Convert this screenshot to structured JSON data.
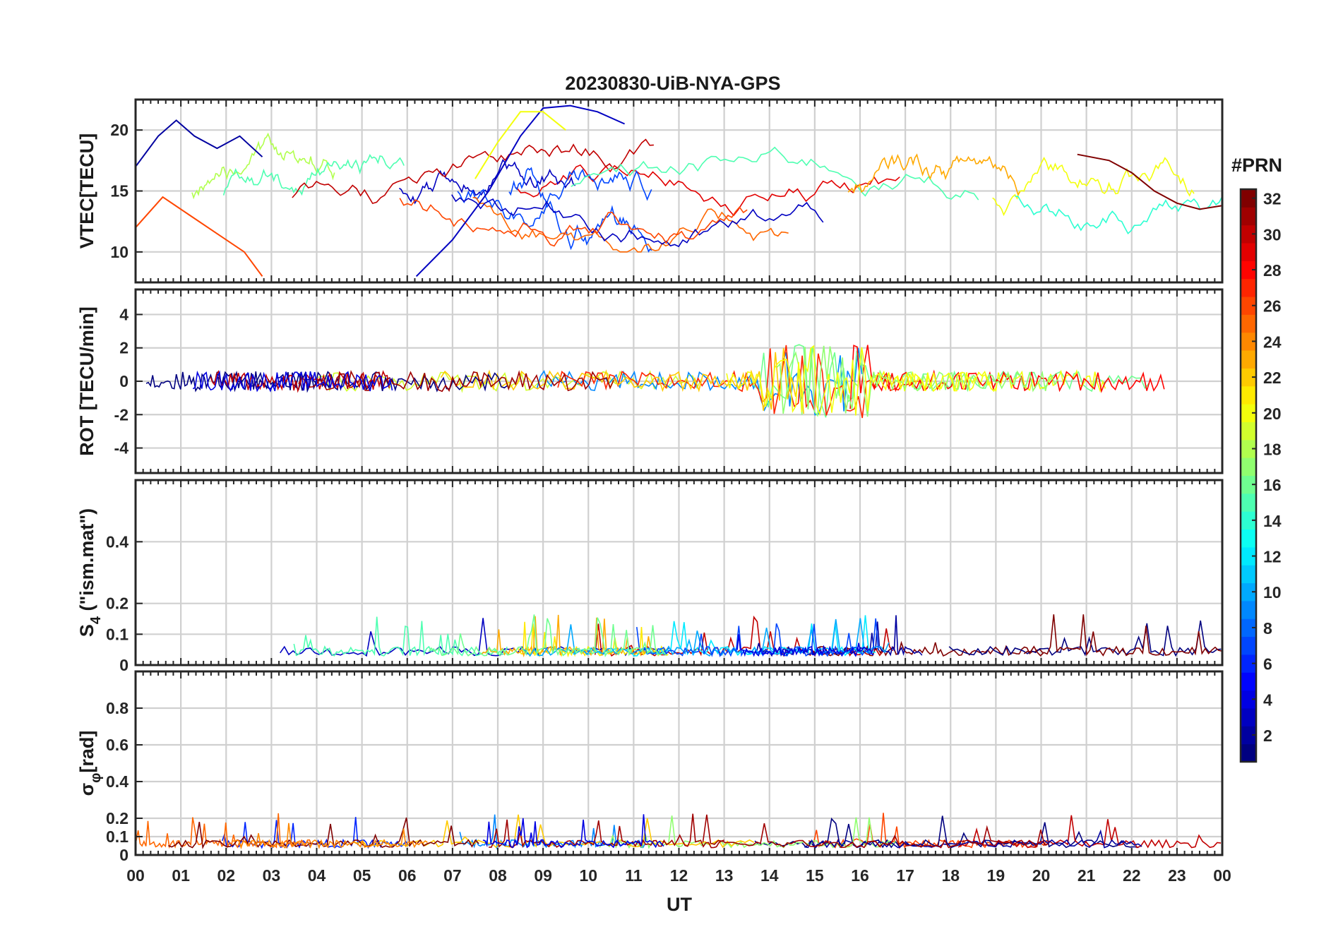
{
  "chart_data": {
    "type": "line",
    "title": "20230830-UiB-NYA-GPS",
    "x_axis": {
      "label": "UT",
      "tick_labels": [
        "00",
        "01",
        "02",
        "03",
        "04",
        "05",
        "06",
        "07",
        "08",
        "09",
        "10",
        "11",
        "12",
        "13",
        "14",
        "15",
        "16",
        "17",
        "18",
        "19",
        "20",
        "21",
        "22",
        "23",
        "00"
      ],
      "range_hours": [
        0,
        24
      ]
    },
    "colorbar": {
      "label": "#PRN",
      "range": [
        1,
        32
      ],
      "tick_labels": [
        "2",
        "4",
        "6",
        "8",
        "10",
        "12",
        "14",
        "16",
        "18",
        "20",
        "22",
        "24",
        "26",
        "28",
        "30",
        "32"
      ],
      "colormap": "jet",
      "colors": [
        "#00008f",
        "#0000ff",
        "#0080ff",
        "#00ffff",
        "#80ff80",
        "#ffff00",
        "#ff8000",
        "#ff0000",
        "#800000"
      ]
    },
    "panels": [
      {
        "id": "vtec",
        "ylabel": "VTEC[TECU]",
        "ylim": [
          7.5,
          22.5
        ],
        "yticks": [
          10,
          15,
          20
        ],
        "grid": true,
        "envelope": {
          "base": 15,
          "min": 8,
          "max": 22
        },
        "series": [
          {
            "name": "PRN 2",
            "x": [
              0,
              0.5,
              0.9,
              1.3,
              1.8,
              2.3,
              2.8
            ],
            "y": [
              17.0,
              19.5,
              20.8,
              19.5,
              18.5,
              19.5,
              17.8
            ]
          },
          {
            "name": "PRN 3",
            "x": [
              6.2,
              7.0,
              7.8,
              8.5,
              9.0,
              9.6,
              10.2,
              10.8
            ],
            "y": [
              8.0,
              11.0,
              15.0,
              19.5,
              21.8,
              22.0,
              21.5,
              20.5
            ]
          },
          {
            "name": "PRN 26",
            "x": [
              0,
              0.6,
              1.2,
              1.8,
              2.4,
              2.8
            ],
            "y": [
              12.0,
              14.5,
              13.0,
              11.5,
              10.0,
              8.0
            ]
          },
          {
            "name": "PRN 32",
            "x": [
              20.8,
              21.5,
              22.0,
              22.5,
              23.0,
              23.5,
              24.0
            ],
            "y": [
              18.0,
              17.5,
              16.5,
              15.0,
              14.0,
              13.5,
              13.8
            ]
          },
          {
            "name": "PRN 20",
            "x": [
              7.5,
              8.0,
              8.5,
              9.0,
              9.5
            ],
            "y": [
              16.0,
              19.0,
              21.5,
              21.5,
              20.0
            ]
          }
        ]
      },
      {
        "id": "rot",
        "ylabel": "ROT [TECU/min]",
        "ylim": [
          -5.5,
          5.5
        ],
        "yticks": [
          -4,
          -2,
          0,
          2,
          4
        ],
        "grid": true,
        "envelope": {
          "base": 0,
          "min": -4,
          "max": 5.5
        }
      },
      {
        "id": "s4",
        "ylabel": "S4 (\"ism.mat\")",
        "ylabel_main": "S",
        "ylabel_sub": "4",
        "ylabel_rest": " (\"ism.mat\")",
        "ylim": [
          0,
          0.6
        ],
        "yticks": [
          0,
          0.1,
          0.2,
          0.4
        ],
        "grid": true,
        "envelope": {
          "base": 0.03,
          "min": 0,
          "max": 0.25
        }
      },
      {
        "id": "sigma",
        "ylabel": "σφ[rad]",
        "ylabel_main": "σ",
        "ylabel_sub": "φ",
        "ylabel_rest": "[rad]",
        "ylim": [
          0,
          1.0
        ],
        "yticks": [
          0,
          0.1,
          0.2,
          0.4,
          0.6,
          0.8
        ],
        "grid": true,
        "envelope": {
          "base": 0.04,
          "min": 0,
          "max": 0.35
        }
      }
    ]
  }
}
